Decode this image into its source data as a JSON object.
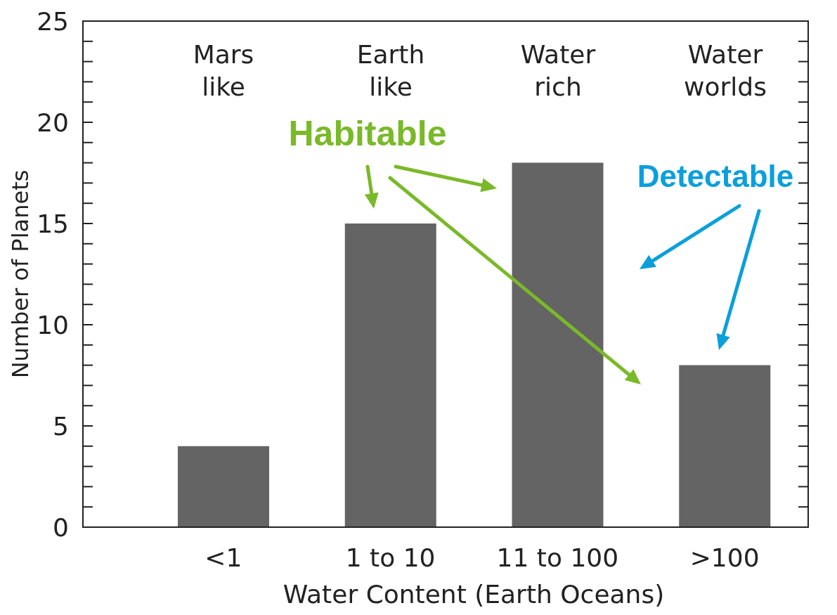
{
  "chart_data": {
    "type": "bar",
    "categories": [
      "<1",
      "1 to 10",
      "11 to 100",
      ">100"
    ],
    "values": [
      4,
      15,
      18,
      8
    ],
    "color": "#646464",
    "xlabel": "Water Content (Earth Oceans)",
    "ylabel": "Number of Planets",
    "ylim": [
      0,
      25
    ],
    "yticks": [
      0,
      {
        "value": 1,
        "label": null
      },
      {
        "value": 2,
        "label": null
      },
      {
        "value": 3,
        "label": null
      },
      {
        "value": 4,
        "label": null
      },
      5,
      {
        "value": 6,
        "label": null
      },
      {
        "value": 7,
        "label": null
      },
      {
        "value": 8,
        "label": null
      },
      {
        "value": 9,
        "label": null
      },
      10,
      {
        "value": 11,
        "label": null
      },
      {
        "value": 12,
        "label": null
      },
      {
        "value": 13,
        "label": null
      },
      {
        "value": 14,
        "label": null
      },
      15,
      {
        "value": 16,
        "label": null
      },
      {
        "value": 17,
        "label": null
      },
      {
        "value": 18,
        "label": null
      },
      {
        "value": 19,
        "label": null
      },
      20,
      {
        "value": 21,
        "label": null
      },
      {
        "value": 22,
        "label": null
      },
      {
        "value": 23,
        "label": null
      },
      {
        "value": 24,
        "label": null
      },
      25
    ],
    "grid": false,
    "legend": false,
    "annotations": [
      "Mars like",
      "Earth like",
      "Water rich",
      "Water worlds",
      "Habitable",
      "Detectable"
    ]
  }
}
